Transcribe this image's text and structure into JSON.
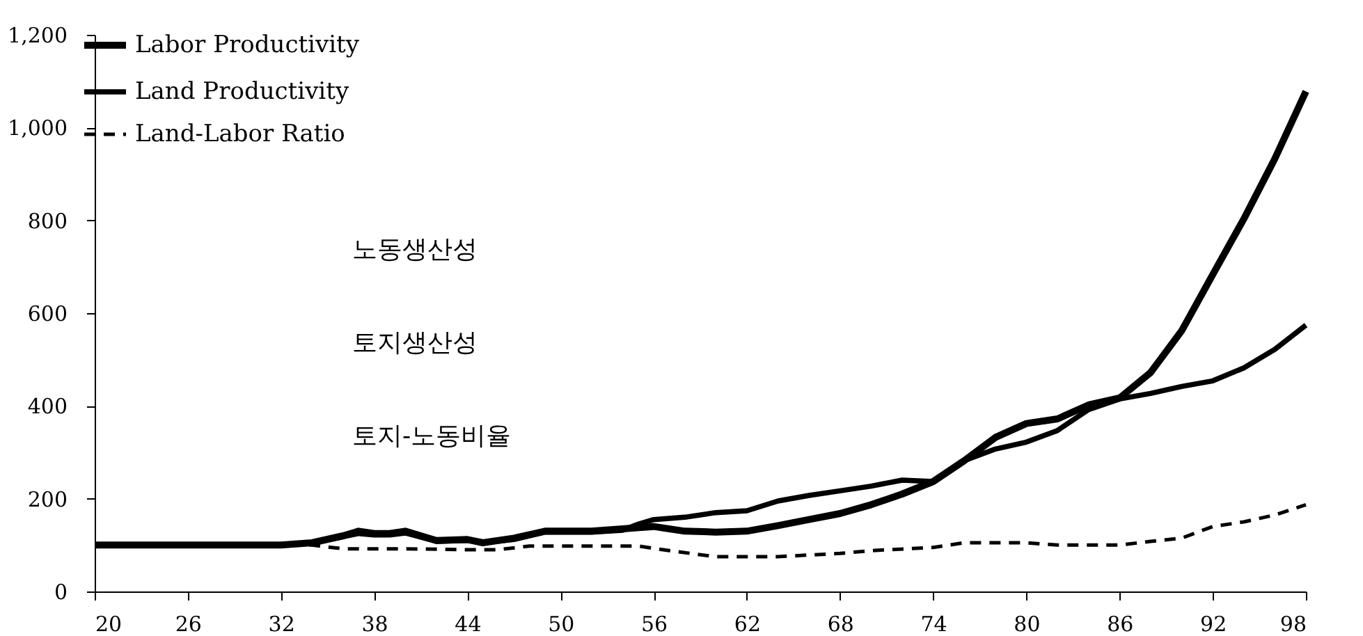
{
  "chart_data": {
    "type": "line",
    "xlim": [
      20,
      98
    ],
    "xticks": [
      20,
      26,
      32,
      38,
      44,
      50,
      56,
      62,
      68,
      74,
      80,
      86,
      92,
      98
    ],
    "ylim": [
      0,
      1200
    ],
    "yticks": [
      0,
      200,
      400,
      600,
      800,
      {
        "value": 1000,
        "label": "1,000"
      },
      {
        "value": 1200,
        "label": "1,200"
      }
    ],
    "grid": false,
    "legend": "top left",
    "marker": "none",
    "annotations": [
      "노동생산성",
      "토지생산성",
      "토지-노동비율"
    ],
    "series": [
      {
        "name": "Labor Productivity",
        "color": "#000000",
        "line_style": "solid",
        "x": [
          20,
          24,
          28,
          32,
          34,
          36,
          37,
          38,
          39,
          40,
          42,
          44,
          45,
          47,
          49,
          52,
          54,
          56,
          58,
          60,
          62,
          64,
          66,
          68,
          70,
          72,
          74,
          76,
          78,
          80,
          82,
          84,
          86,
          88,
          90,
          92,
          94,
          96,
          98
        ],
        "values": [
          100,
          100,
          100,
          100,
          105,
          120,
          130,
          125,
          125,
          130,
          110,
          112,
          105,
          115,
          130,
          130,
          135,
          140,
          130,
          128,
          130,
          142,
          155,
          168,
          187,
          210,
          237,
          282,
          332,
          362,
          372,
          402,
          417,
          472,
          562,
          683,
          803,
          933,
          1078
        ]
      },
      {
        "name": "Land Productivity",
        "color": "#000000",
        "line_style": "solid",
        "x": [
          20,
          24,
          28,
          32,
          34,
          36,
          37,
          38,
          39,
          40,
          42,
          44,
          45,
          47,
          49,
          52,
          54,
          55,
          56,
          58,
          60,
          62,
          64,
          66,
          68,
          70,
          72,
          74,
          76,
          78,
          80,
          82,
          84,
          86,
          88,
          90,
          92,
          94,
          96,
          98
        ],
        "values": [
          100,
          100,
          100,
          100,
          105,
          118,
          125,
          122,
          122,
          126,
          108,
          110,
          105,
          112,
          128,
          128,
          132,
          145,
          155,
          160,
          170,
          174,
          195,
          207,
          217,
          227,
          240,
          237,
          282,
          307,
          322,
          347,
          392,
          415,
          427,
          442,
          454,
          482,
          522,
          574
        ]
      },
      {
        "name": "Land-Labor Ratio",
        "color": "#000000",
        "line_style": "dashed",
        "x": [
          20,
          26,
          32,
          34,
          36,
          40,
          44,
          46,
          48,
          50,
          55,
          57,
          60,
          64,
          68,
          70,
          74,
          76,
          80,
          82,
          86,
          88,
          90,
          92,
          94,
          96,
          98
        ],
        "values": [
          100,
          100,
          100,
          100,
          92,
          92,
          90,
          90,
          98,
          98,
          98,
          88,
          75,
          75,
          82,
          88,
          95,
          105,
          105,
          100,
          100,
          108,
          115,
          140,
          150,
          165,
          187
        ]
      }
    ]
  }
}
